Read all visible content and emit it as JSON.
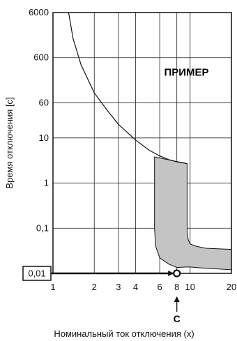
{
  "chart_data": {
    "type": "line",
    "xlabel": "Номинальный ток отключения (x)",
    "ylabel": "Время отключения [c]",
    "x_scale": "log",
    "y_scale": "log",
    "xlim": [
      1,
      20
    ],
    "ylim": [
      0.01,
      6000
    ],
    "x_ticks": [
      {
        "value": 1,
        "label": "1"
      },
      {
        "value": 2,
        "label": "2"
      },
      {
        "value": 3,
        "label": "3"
      },
      {
        "value": 4,
        "label": "4"
      },
      {
        "value": 6,
        "label": "6"
      },
      {
        "value": 8,
        "label": "8"
      },
      {
        "value": 10,
        "label": "10"
      },
      {
        "value": 20,
        "label": "20"
      }
    ],
    "y_ticks": [
      {
        "value": 6000,
        "label": "6000"
      },
      {
        "value": 600,
        "label": "600"
      },
      {
        "value": 60,
        "label": "60"
      },
      {
        "value": 10,
        "label": "10"
      },
      {
        "value": 1,
        "label": "1"
      },
      {
        "value": 0.1,
        "label": "0,1"
      }
    ],
    "grid": true,
    "annotation_text": "ПРИМЕР",
    "example": {
      "x_value": 8,
      "x_marker_label": "C",
      "y_value": 0.01,
      "y_label": "0,01"
    },
    "curve": {
      "x": [
        1.3,
        1.4,
        1.6,
        2,
        2.5,
        3,
        4,
        5,
        6,
        7,
        8,
        9.5
      ],
      "y": [
        6000,
        1600,
        420,
        100,
        40,
        20,
        9,
        5.4,
        4.0,
        3.3,
        2.95,
        2.7
      ]
    },
    "band": {
      "x": [
        5.5,
        9.5,
        9.5,
        9.7,
        10,
        11,
        13,
        20,
        20,
        13,
        11,
        10,
        9.3,
        8,
        7,
        6,
        5.6,
        5.5
      ],
      "y": [
        3.8,
        2.7,
        0.08,
        0.055,
        0.045,
        0.04,
        0.036,
        0.034,
        0.012,
        0.013,
        0.0135,
        0.0138,
        0.0138,
        0.0135,
        0.016,
        0.022,
        0.04,
        0.1
      ]
    }
  }
}
